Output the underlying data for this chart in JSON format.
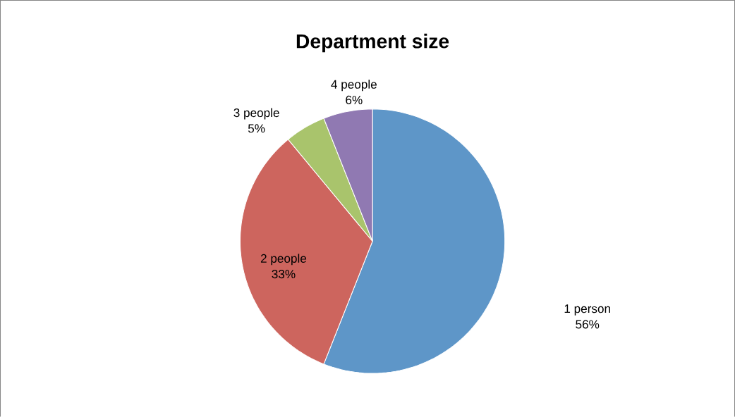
{
  "chart_data": {
    "type": "pie",
    "title": "Department size",
    "categories": [
      "1 person",
      "2 people",
      "3 people",
      "4 people"
    ],
    "values": [
      56,
      33,
      5,
      6
    ],
    "value_labels": [
      "56%",
      "33%",
      "5%",
      "6%"
    ],
    "colors": [
      "#5e96c8",
      "#cd655e",
      "#a9c46c",
      "#9079b2"
    ]
  }
}
